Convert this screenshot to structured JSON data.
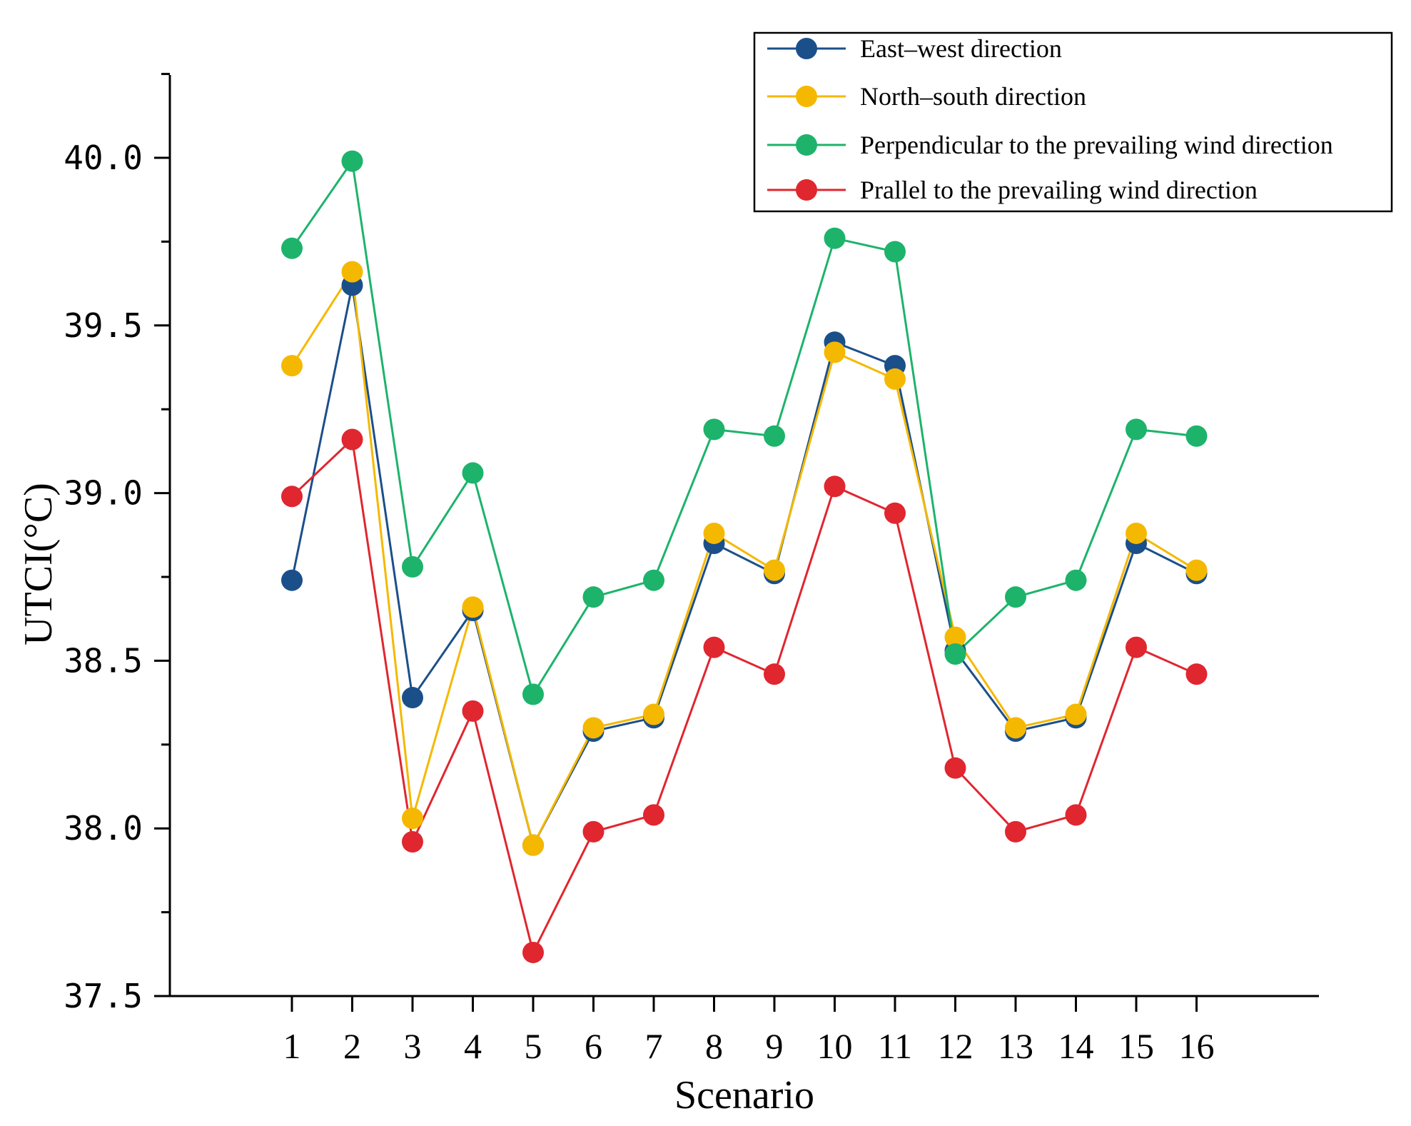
{
  "chart_data": {
    "type": "line",
    "title": "",
    "xlabel": "Scenario",
    "ylabel": "UTCI(°C)",
    "categories": [
      "1",
      "2",
      "3",
      "4",
      "5",
      "6",
      "7",
      "8",
      "9",
      "10",
      "11",
      "12",
      "13",
      "14",
      "15",
      "16"
    ],
    "ylim": [
      37.5,
      40.25
    ],
    "yticks": [
      "37.5",
      "38.0",
      "38.5",
      "39.0",
      "39.5",
      "40.0"
    ],
    "ytick_values": [
      37.5,
      38.0,
      38.5,
      39.0,
      39.5,
      40.0
    ],
    "legend_position": "top-right",
    "series": [
      {
        "name": "East–west direction",
        "color": "#1b4f8a",
        "values": [
          38.74,
          39.62,
          38.39,
          38.65,
          37.95,
          38.29,
          38.33,
          38.85,
          38.76,
          39.45,
          39.38,
          38.53,
          38.29,
          38.33,
          38.85,
          38.76
        ]
      },
      {
        "name": "North–south direction",
        "color": "#f5b800",
        "values": [
          39.38,
          39.66,
          38.03,
          38.66,
          37.95,
          38.3,
          38.34,
          38.88,
          38.77,
          39.42,
          39.34,
          38.57,
          38.3,
          38.34,
          38.88,
          38.77
        ]
      },
      {
        "name": "Perpendicular to the prevailing wind direction",
        "color": "#1db36b",
        "values": [
          39.73,
          39.99,
          38.78,
          39.06,
          38.4,
          38.69,
          38.74,
          39.19,
          39.17,
          39.76,
          39.72,
          38.52,
          38.69,
          38.74,
          39.19,
          39.17
        ]
      },
      {
        "name": "Prallel to the prevailing wind direction",
        "color": "#e0262f",
        "values": [
          38.99,
          39.16,
          37.96,
          38.35,
          37.63,
          37.99,
          38.04,
          38.54,
          38.46,
          39.02,
          38.94,
          38.18,
          37.99,
          38.04,
          38.54,
          38.46
        ]
      }
    ]
  }
}
